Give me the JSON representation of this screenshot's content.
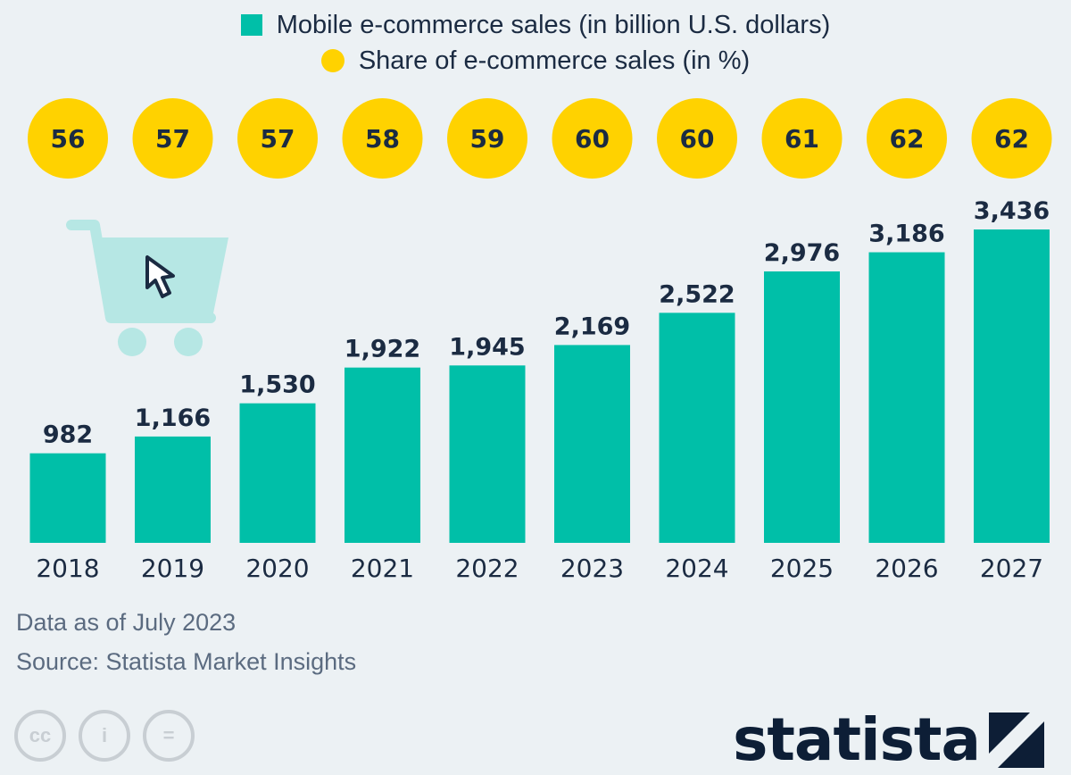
{
  "legend": {
    "bar_label": "Mobile e-commerce sales (in billion U.S. dollars)",
    "dot_label": "Share of e-commerce sales (in %)"
  },
  "notes": {
    "data_as_of": "Data as of July 2023",
    "source": "Source: Statista Market Insights"
  },
  "badges": {
    "cc": "cc",
    "by": "i",
    "nd": "="
  },
  "brand": {
    "name": "statista"
  },
  "colors": {
    "bar": "#00bfa8",
    "dot": "#ffd200",
    "cart": "#b6e7e4",
    "text": "#1b2b42"
  },
  "icons": [
    "shopping-cart-icon",
    "cursor-icon",
    "cc-icon",
    "attribution-icon",
    "no-derivatives-icon",
    "statista-logo-icon"
  ],
  "chart_data": {
    "type": "bar",
    "categories": [
      "2018",
      "2019",
      "2020",
      "2021",
      "2022",
      "2023",
      "2024",
      "2025",
      "2026",
      "2027"
    ],
    "series": [
      {
        "name": "Mobile e-commerce sales (in billion U.S. dollars)",
        "values": [
          982,
          1166,
          1530,
          1922,
          1945,
          2169,
          2522,
          2976,
          3186,
          3436
        ],
        "labels": [
          "982",
          "1,166",
          "1,530",
          "1,922",
          "1,945",
          "2,169",
          "2,522",
          "2,976",
          "3,186",
          "3,436"
        ]
      },
      {
        "name": "Share of e-commerce sales (in %)",
        "values": [
          56,
          57,
          57,
          58,
          59,
          60,
          60,
          61,
          62,
          62
        ]
      }
    ],
    "ylim": [
      0,
      3436
    ],
    "grid": false,
    "legend_position": "top-center"
  }
}
